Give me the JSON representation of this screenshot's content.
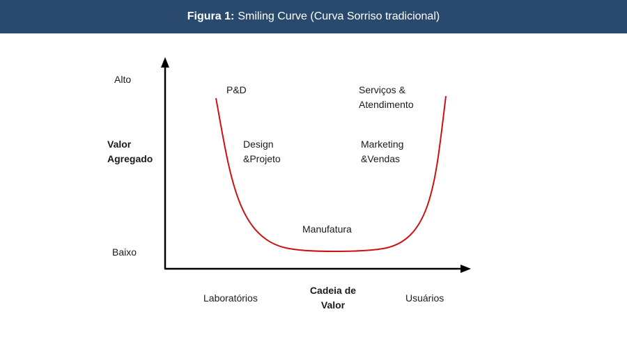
{
  "header": {
    "figure_label": "Figura 1:",
    "title": "Smiling Curve (Curva Sorriso tradicional)"
  },
  "axes": {
    "y_title_line1": "Valor",
    "y_title_line2": "Agregado",
    "y_high": "Alto",
    "y_low": "Baixo",
    "x_title_line1": "Cadeia de",
    "x_title_line2": "Valor",
    "x_left": "Laboratórios",
    "x_right": "Usuários"
  },
  "stages": {
    "pd": "P&D",
    "design_line1": "Design",
    "design_line2": "&Projeto",
    "manufacturing": "Manufatura",
    "marketing_line1": "Marketing",
    "marketing_line2": "&Vendas",
    "services_line1": "Serviços &",
    "services_line2": "Atendimento"
  },
  "colors": {
    "header_bg": "#2a4a6d",
    "curve": "#cc1111",
    "axis": "#000000"
  }
}
